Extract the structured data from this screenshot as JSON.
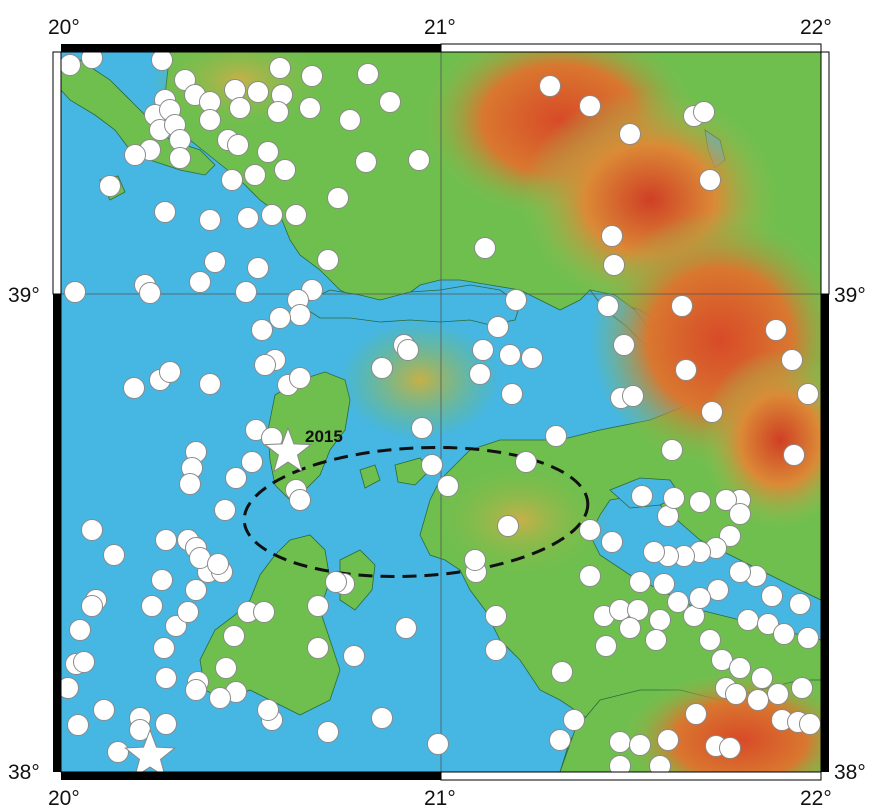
{
  "map": {
    "longitude_labels": [
      "20°",
      "21°",
      "22°"
    ],
    "latitude_labels": [
      "38°",
      "39°"
    ],
    "event_label": "2015",
    "extent": {
      "lon_min": 20,
      "lon_max": 22,
      "lat_min": 38,
      "lat_max": 39.62
    },
    "colors": {
      "sea": "#46b6e3",
      "land_low": "#6fbf4e",
      "land_mid": "#c9b54a",
      "land_high": "#d9532b",
      "event_marker": "#ffffff",
      "frame": "#000000"
    },
    "legend_items": [
      {
        "icon": "star-icon",
        "meaning": "mainshock epicenter"
      },
      {
        "icon": "circle-icon",
        "meaning": "earthquake epicenter"
      }
    ]
  }
}
